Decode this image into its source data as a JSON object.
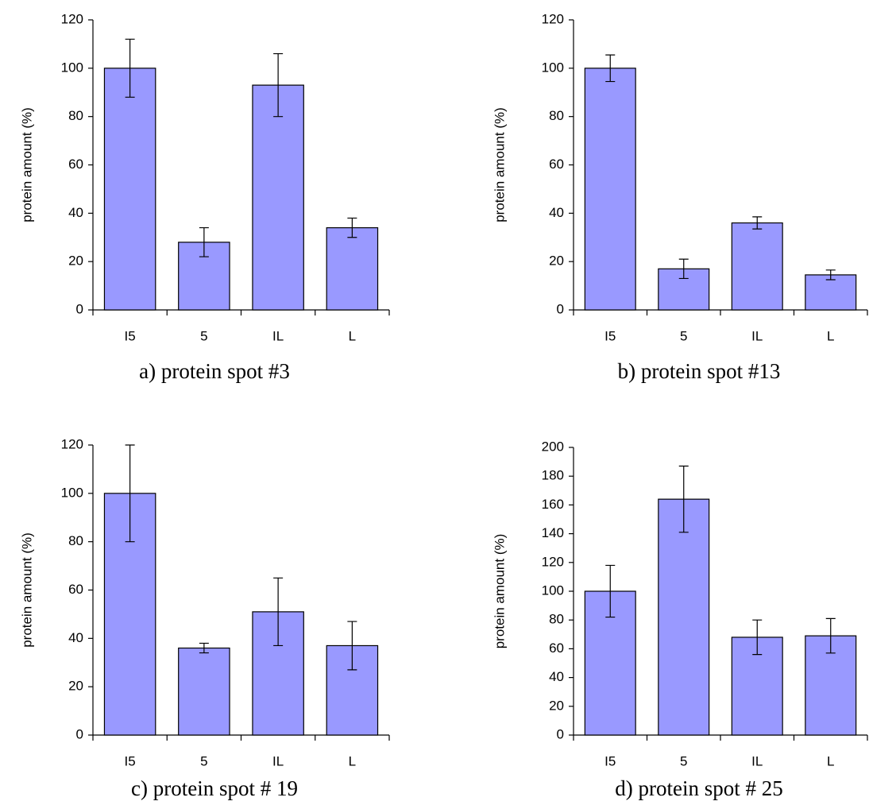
{
  "chart_data": [
    {
      "type": "bar",
      "title": "a) protein spot #3",
      "ylabel": "protein amount (%)",
      "categories": [
        "I5",
        "5",
        "IL",
        "L"
      ],
      "values": [
        100,
        28,
        93,
        34
      ],
      "errors": [
        12,
        6,
        13,
        4
      ],
      "color": "#9999ff",
      "ylim": [
        0,
        120
      ],
      "yticks": [
        0,
        20,
        40,
        60,
        80,
        100,
        120
      ]
    },
    {
      "type": "bar",
      "title": "b) protein spot #13",
      "ylabel": "protein amount (%)",
      "categories": [
        "I5",
        "5",
        "IL",
        "L"
      ],
      "values": [
        100,
        17,
        36,
        14.5
      ],
      "errors": [
        5.5,
        4,
        2.5,
        2
      ],
      "color": "#9999ff",
      "ylim": [
        0,
        120
      ],
      "yticks": [
        0,
        20,
        40,
        60,
        80,
        100,
        120
      ]
    },
    {
      "type": "bar",
      "title": "c) protein spot # 19",
      "ylabel": "protein amount (%)",
      "categories": [
        "I5",
        "5",
        "IL",
        "L"
      ],
      "values": [
        100,
        36,
        51,
        37
      ],
      "errors": [
        20,
        2,
        14,
        10
      ],
      "color": "#9999ff",
      "ylim": [
        0,
        120
      ],
      "yticks": [
        0,
        20,
        40,
        60,
        80,
        100,
        120
      ]
    },
    {
      "type": "bar",
      "title": "d) protein spot # 25",
      "ylabel": "protein amount (%)",
      "categories": [
        "I5",
        "5",
        "IL",
        "L"
      ],
      "values": [
        100,
        164,
        68,
        69
      ],
      "errors": [
        18,
        23,
        12,
        12
      ],
      "color": "#9999ff",
      "ylim": [
        0,
        200
      ],
      "yticks": [
        0,
        20,
        40,
        60,
        80,
        100,
        120,
        140,
        160,
        180,
        200
      ]
    }
  ]
}
